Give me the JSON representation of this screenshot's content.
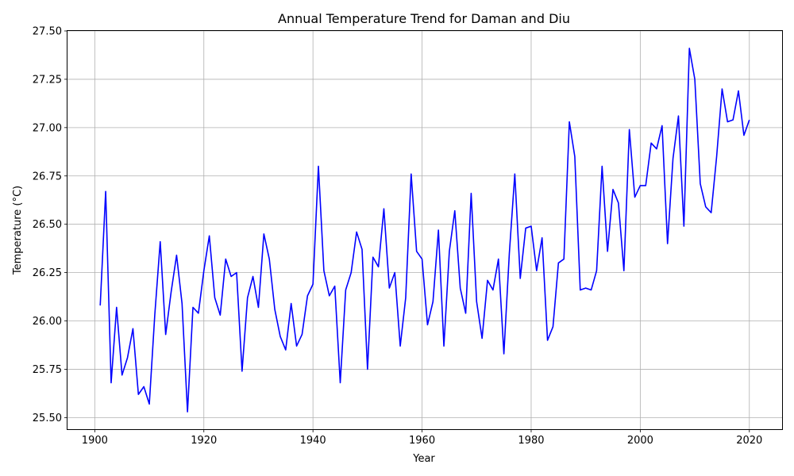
{
  "chart_data": {
    "type": "line",
    "title": "Annual Temperature Trend for Daman and Diu",
    "xlabel": "Year",
    "ylabel": "Temperature (°C)",
    "xlim": [
      1895,
      2026
    ],
    "ylim": [
      25.44,
      27.5
    ],
    "x_ticks": [
      1900,
      1920,
      1940,
      1960,
      1980,
      2000,
      2020
    ],
    "x_tick_labels": [
      "1900",
      "1920",
      "1940",
      "1960",
      "1980",
      "2000",
      "2020"
    ],
    "y_ticks": [
      25.5,
      25.75,
      26.0,
      26.25,
      26.5,
      26.75,
      27.0,
      27.25,
      27.5
    ],
    "y_tick_labels": [
      "25.50",
      "25.75",
      "26.00",
      "26.25",
      "26.50",
      "26.75",
      "27.00",
      "27.25",
      "27.50"
    ],
    "grid": true,
    "line_color": "#0000ff",
    "series": [
      {
        "x": [
          1901,
          1902,
          1903,
          1904,
          1905,
          1906,
          1907,
          1908,
          1909,
          1910,
          1911,
          1912,
          1913,
          1914,
          1915,
          1916,
          1917,
          1918,
          1919,
          1920,
          1921,
          1922,
          1923,
          1924,
          1925,
          1926,
          1927,
          1928,
          1929,
          1930,
          1931,
          1932,
          1933,
          1934,
          1935,
          1936,
          1937,
          1938,
          1939,
          1940,
          1941,
          1942,
          1943,
          1944,
          1945,
          1946,
          1947,
          1948,
          1949,
          1950,
          1951,
          1952,
          1953,
          1954,
          1955,
          1956,
          1957,
          1958,
          1959,
          1960,
          1961,
          1962,
          1963,
          1964,
          1965,
          1966,
          1967,
          1968,
          1969,
          1970,
          1971,
          1972,
          1973,
          1974,
          1975,
          1976,
          1977,
          1978,
          1979,
          1980,
          1981,
          1982,
          1983,
          1984,
          1985,
          1986,
          1987,
          1988,
          1989,
          1990,
          1991,
          1992,
          1993,
          1994,
          1995,
          1996,
          1997,
          1998,
          1999,
          2000,
          2001,
          2002,
          2003,
          2004,
          2005,
          2006,
          2007,
          2008,
          2009,
          2010,
          2011,
          2012,
          2013,
          2014,
          2015,
          2016,
          2017,
          2018,
          2019,
          2020
        ],
        "values": [
          26.08,
          26.67,
          25.68,
          26.07,
          25.72,
          25.81,
          25.96,
          25.62,
          25.66,
          25.57,
          26.03,
          26.41,
          25.93,
          26.15,
          26.34,
          26.09,
          25.53,
          26.07,
          26.04,
          26.26,
          26.44,
          26.12,
          26.03,
          26.32,
          26.23,
          26.25,
          25.74,
          26.12,
          26.23,
          26.07,
          26.45,
          26.32,
          26.06,
          25.92,
          25.85,
          26.09,
          25.87,
          25.93,
          26.13,
          26.19,
          26.8,
          26.26,
          26.13,
          26.18,
          25.68,
          26.16,
          26.25,
          26.46,
          26.37,
          25.75,
          26.33,
          26.28,
          26.58,
          26.17,
          26.25,
          25.87,
          26.12,
          26.76,
          26.36,
          26.32,
          25.98,
          26.1,
          26.47,
          25.87,
          26.36,
          26.57,
          26.17,
          26.04,
          26.66,
          26.1,
          25.91,
          26.21,
          26.16,
          26.32,
          25.83,
          26.35,
          26.76,
          26.22,
          26.48,
          26.49,
          26.26,
          26.43,
          25.9,
          25.97,
          26.3,
          26.32,
          27.03,
          26.85,
          26.16,
          26.17,
          26.16,
          26.26,
          26.8,
          26.36,
          26.68,
          26.61,
          26.26,
          26.99,
          26.64,
          26.7,
          26.7,
          26.92,
          26.89,
          27.01,
          26.4,
          26.84,
          27.06,
          26.49,
          27.41,
          27.25,
          26.71,
          26.59,
          26.56,
          26.85,
          27.2,
          27.03,
          27.04,
          27.19,
          26.96,
          27.04
        ]
      }
    ]
  }
}
